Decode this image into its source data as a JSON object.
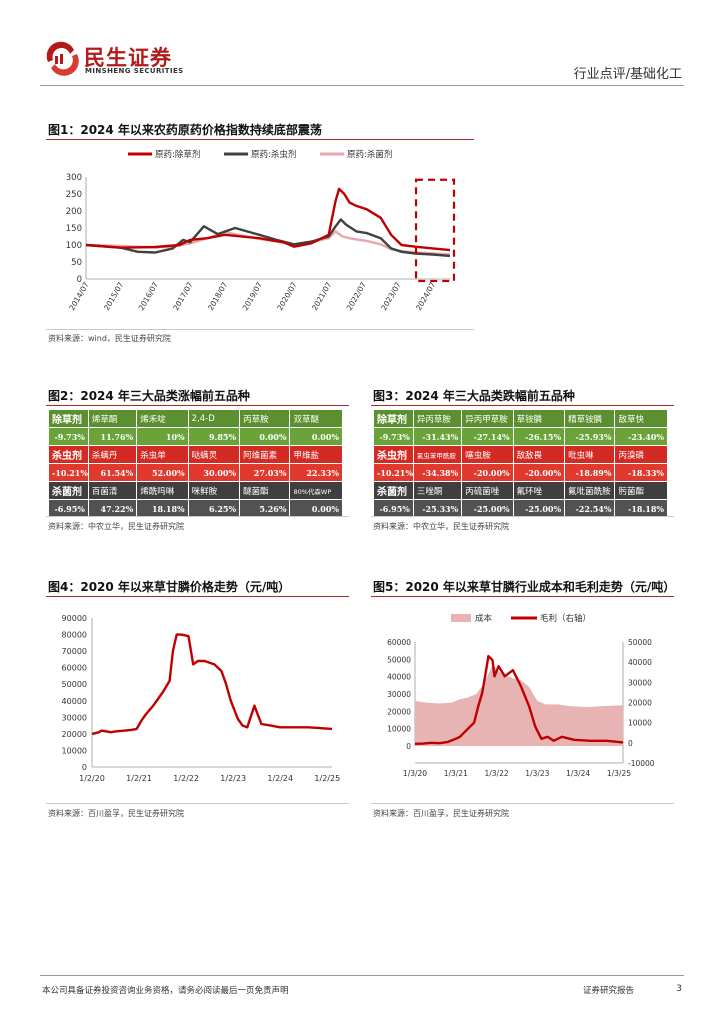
{
  "header": {
    "brand_cn": "民生证券",
    "brand_en": "MINSHENG SECURITIES",
    "section": "行业点评/基础化工"
  },
  "figures": {
    "fig1": {
      "title": "图1：2024 年以来农药原药价格指数持续底部震荡",
      "source": "资料来源：wind，民生证券研究院",
      "legend": [
        "原药:除草剂",
        "原药:杀虫剂",
        "原药:杀菌剂"
      ],
      "colors": {
        "herbicide": "#c00000",
        "insecticide": "#404040",
        "fungicide": "#e6a8ac"
      }
    },
    "fig2": {
      "title": "图2：2024 年三大品类涨幅前五品种",
      "source": "资料来源：中农立华，民生证券研究院",
      "rows": [
        {
          "cat": "除草剂",
          "cat_val": "-9.73%",
          "cls": "g",
          "items": [
            [
              "烯草酮",
              "11.76%"
            ],
            [
              "烯禾啶",
              "10%"
            ],
            [
              "2,4-D",
              "9.85%"
            ],
            [
              "丙草胺",
              "0.00%"
            ],
            [
              "双草醚",
              "0.00%"
            ]
          ]
        },
        {
          "cat": "杀虫剂",
          "cat_val": "-10.21%",
          "cls": "r",
          "items": [
            [
              "杀螨丹",
              "61.54%"
            ],
            [
              "杀虫单",
              "52.00%"
            ],
            [
              "哒螨灵",
              "30.00%"
            ],
            [
              "阿维菌素",
              "27.03%"
            ],
            [
              "甲维盐",
              "22.33%"
            ]
          ]
        },
        {
          "cat": "杀菌剂",
          "cat_val": "-6.95%",
          "cls": "k",
          "items": [
            [
              "百菌清",
              "47.22%"
            ],
            [
              "烯酰吗啉",
              "18.18%"
            ],
            [
              "咪鲜胺",
              "6.25%"
            ],
            [
              "醚菌酯",
              "5.26%"
            ],
            [
              "80%代森WP",
              "0.00%"
            ]
          ]
        }
      ]
    },
    "fig3": {
      "title": "图3：2024 年三大品类跌幅前五品种",
      "source": "资料来源：中农立华，民生证券研究院",
      "rows": [
        {
          "cat": "除草剂",
          "cat_val": "-9.73%",
          "cls": "g",
          "items": [
            [
              "异丙草胺",
              "-31.43%"
            ],
            [
              "异丙甲草胺",
              "-27.14%"
            ],
            [
              "草铵膦",
              "-26.15%"
            ],
            [
              "精草铵膦",
              "-25.93%"
            ],
            [
              "敌草快",
              "-23.40%"
            ]
          ]
        },
        {
          "cat": "杀虫剂",
          "cat_val": "-10.21%",
          "cls": "r",
          "items": [
            [
              "氯虫苯甲酰胺",
              "-34.38%"
            ],
            [
              "噻虫胺",
              "-20.00%"
            ],
            [
              "敌敌畏",
              "-20.00%"
            ],
            [
              "吡虫啉",
              "-18.89%"
            ],
            [
              "丙溴磷",
              "-18.33%"
            ]
          ]
        },
        {
          "cat": "杀菌剂",
          "cat_val": "-6.95%",
          "cls": "k",
          "items": [
            [
              "三唑酮",
              "-25.33%"
            ],
            [
              "丙硫菌唑",
              "-25.00%"
            ],
            [
              "氟环唑",
              "-25.00%"
            ],
            [
              "氟吡菌酰胺",
              "-22.54%"
            ],
            [
              "肟菌酯",
              "-18.18%"
            ]
          ]
        }
      ]
    },
    "fig4": {
      "title": "图4：2020 年以来草甘膦价格走势（元/吨）",
      "source": "资料来源：百川盈孚，民生证券研究院"
    },
    "fig5": {
      "title": "图5：2020 年以来草甘膦行业成本和毛利走势（元/吨）",
      "source": "资料来源：百川盈孚，民生证券研究院",
      "legend": [
        "成本",
        "毛利（右轴）"
      ]
    }
  },
  "chart_data": [
    {
      "type": "line",
      "ylim": [
        0,
        300
      ],
      "yticks": [
        0,
        50,
        100,
        150,
        200,
        250,
        300
      ],
      "xticks": [
        "2014/07",
        "2015/07",
        "2016/07",
        "2017/07",
        "2018/07",
        "2019/07",
        "2020/07",
        "2021/07",
        "2022/07",
        "2023/07",
        "2024/07"
      ],
      "x_years": [
        2014.5,
        2025.0
      ],
      "series": [
        {
          "name": "原药:除草剂",
          "x": [
            2014.5,
            2015.5,
            2016.5,
            2017.2,
            2017.5,
            2018.0,
            2018.5,
            2019.5,
            2020.2,
            2020.5,
            2021.0,
            2021.5,
            2021.7,
            2021.8,
            2021.95,
            2022.1,
            2022.3,
            2022.6,
            2023.0,
            2023.3,
            2023.6,
            2024.0,
            2024.5,
            2025.0
          ],
          "values": [
            100,
            92,
            94,
            100,
            115,
            120,
            130,
            120,
            108,
            95,
            105,
            130,
            230,
            265,
            250,
            225,
            215,
            205,
            180,
            130,
            100,
            95,
            90,
            85
          ]
        },
        {
          "name": "原药:杀虫剂",
          "x": [
            2014.5,
            2015.5,
            2016.0,
            2016.5,
            2017.0,
            2017.3,
            2017.5,
            2017.9,
            2018.3,
            2018.8,
            2019.5,
            2020.0,
            2020.5,
            2021.0,
            2021.5,
            2021.7,
            2021.85,
            2022.0,
            2022.3,
            2022.6,
            2023.0,
            2023.3,
            2023.6,
            2024.0,
            2024.5,
            2025.0
          ],
          "values": [
            100,
            92,
            80,
            78,
            90,
            115,
            108,
            155,
            132,
            150,
            130,
            115,
            102,
            110,
            125,
            155,
            175,
            160,
            140,
            135,
            120,
            90,
            80,
            75,
            72,
            68
          ]
        },
        {
          "name": "原药:杀菌剂",
          "x": [
            2014.5,
            2015.5,
            2016.5,
            2017.0,
            2017.5,
            2018.0,
            2018.5,
            2019.0,
            2019.5,
            2020.0,
            2020.5,
            2021.0,
            2021.5,
            2021.7,
            2021.9,
            2022.2,
            2022.6,
            2023.0,
            2023.3,
            2023.6,
            2024.0,
            2024.5,
            2025.0
          ],
          "values": [
            100,
            97,
            93,
            95,
            105,
            120,
            138,
            128,
            118,
            110,
            102,
            108,
            120,
            140,
            125,
            118,
            112,
            102,
            88,
            82,
            78,
            75,
            72
          ]
        }
      ]
    },
    {
      "type": "line",
      "ylim": [
        0,
        90000
      ],
      "yticks": [
        0,
        10000,
        20000,
        30000,
        40000,
        50000,
        60000,
        70000,
        80000,
        90000
      ],
      "xticks": [
        "1/2/20",
        "1/2/21",
        "1/2/22",
        "1/2/23",
        "1/2/24",
        "1/2/25"
      ],
      "x": [
        0,
        0.15,
        0.2,
        0.4,
        0.5,
        0.7,
        0.85,
        0.95,
        1.05,
        1.15,
        1.3,
        1.5,
        1.65,
        1.72,
        1.8,
        1.9,
        2.05,
        2.15,
        2.25,
        2.4,
        2.5,
        2.6,
        2.75,
        2.85,
        2.95,
        3.1,
        3.2,
        3.3,
        3.45,
        3.6,
        3.8,
        4.0,
        4.3,
        4.6,
        5.1
      ],
      "values": [
        20000,
        21000,
        22000,
        21000,
        21500,
        22000,
        22500,
        23000,
        28000,
        32000,
        37000,
        45000,
        52000,
        70000,
        80000,
        80000,
        79000,
        62000,
        64000,
        64000,
        63000,
        62000,
        58000,
        50000,
        40000,
        29000,
        25000,
        24000,
        37000,
        26000,
        25000,
        24000,
        24000,
        24000,
        23000
      ]
    },
    {
      "type": "area+line",
      "ylim": [
        0,
        60000
      ],
      "y2lim": [
        -10000,
        50000
      ],
      "yticks": [
        0,
        10000,
        20000,
        30000,
        40000,
        50000,
        60000
      ],
      "y2ticks": [
        -10000,
        0,
        10000,
        20000,
        30000,
        40000,
        50000
      ],
      "xticks": [
        "1/3/20",
        "1/3/21",
        "1/3/22",
        "1/3/23",
        "1/3/24",
        "1/3/25"
      ],
      "series": [
        {
          "name": "成本",
          "x": [
            0,
            0.3,
            0.6,
            0.9,
            1.1,
            1.3,
            1.5,
            1.7,
            1.9,
            2.05,
            2.2,
            2.4,
            2.6,
            2.8,
            3.0,
            3.2,
            3.5,
            3.8,
            4.2,
            4.6,
            5.1
          ],
          "values": [
            26000,
            25000,
            24500,
            25000,
            27000,
            28000,
            30000,
            36000,
            47000,
            43000,
            41000,
            39000,
            38000,
            34000,
            26000,
            24000,
            24000,
            23000,
            22500,
            23000,
            23500
          ]
        },
        {
          "name": "毛利（右轴）",
          "x": [
            0,
            0.2,
            0.4,
            0.6,
            0.8,
            1.0,
            1.1,
            1.2,
            1.3,
            1.45,
            1.55,
            1.65,
            1.72,
            1.8,
            1.9,
            1.95,
            2.05,
            2.2,
            2.4,
            2.6,
            2.8,
            2.95,
            3.1,
            3.25,
            3.4,
            3.6,
            3.9,
            4.3,
            4.7,
            5.1
          ],
          "values": [
            -500,
            -400,
            0,
            -200,
            400,
            2000,
            3000,
            5000,
            7000,
            10000,
            18000,
            25000,
            33000,
            43000,
            41000,
            33000,
            38000,
            33000,
            36000,
            28000,
            18000,
            8000,
            2000,
            3000,
            1000,
            3000,
            1500,
            1000,
            1000,
            200
          ]
        }
      ]
    }
  ],
  "footer": {
    "disclaimer": "本公司具备证券投资咨询业务资格，请务必阅读最后一页免责声明",
    "report_type": "证券研究报告",
    "page": "3"
  }
}
